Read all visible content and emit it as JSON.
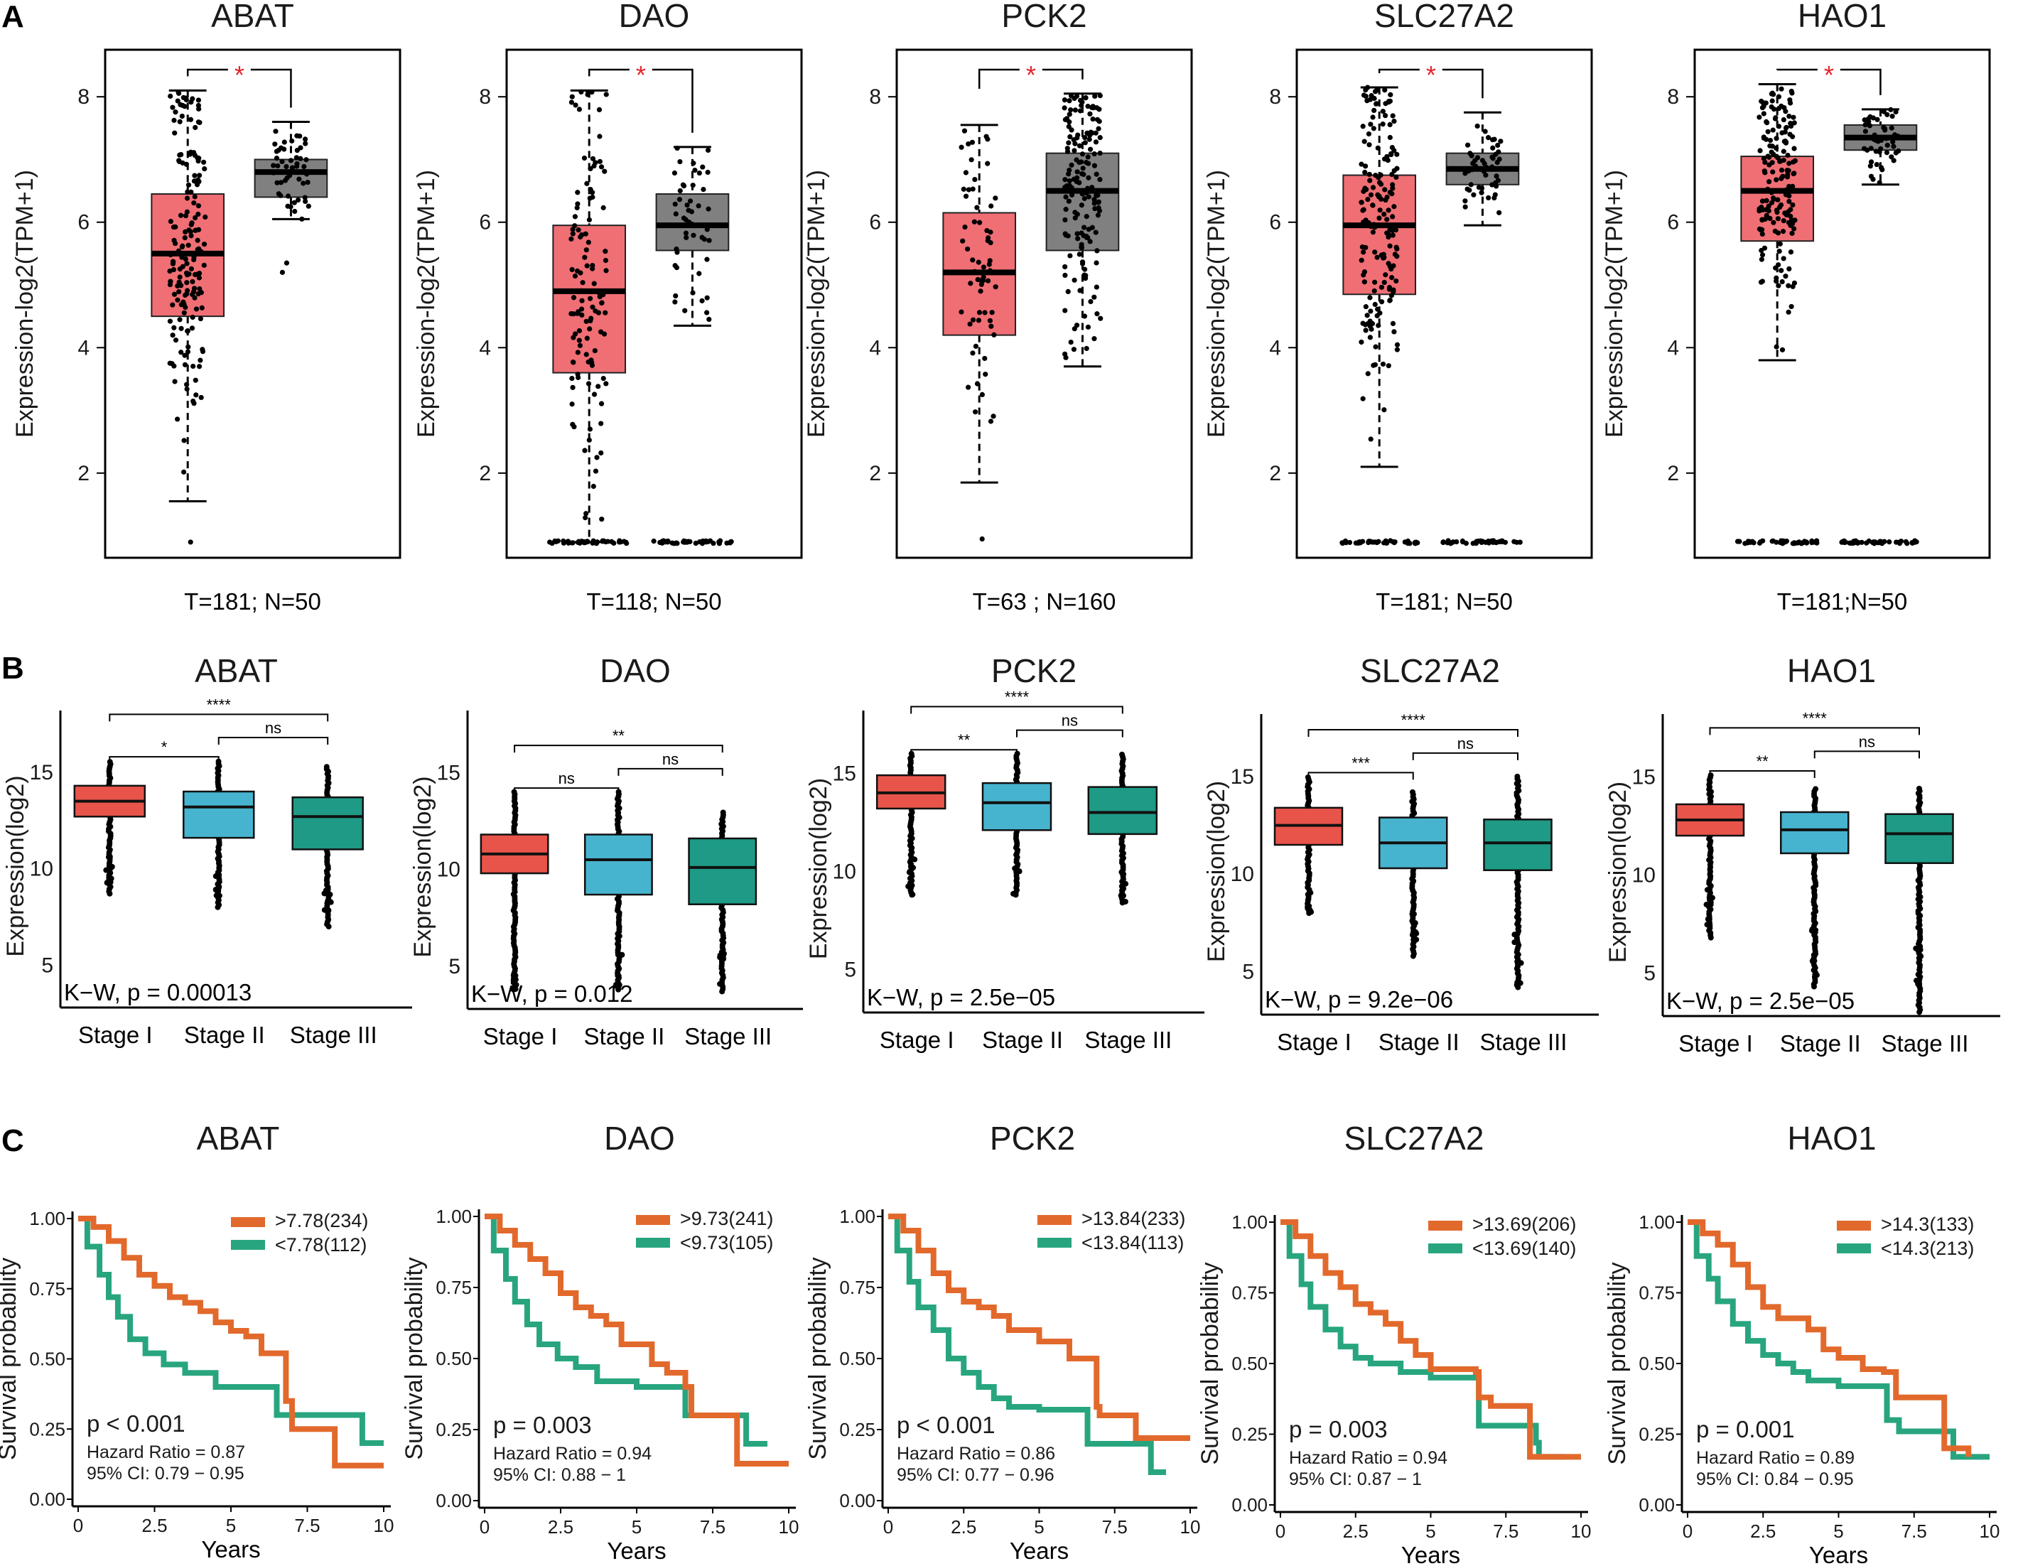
{
  "figure": {
    "panel_labels": [
      "A",
      "B",
      "C"
    ],
    "sig_marker": "*",
    "colors": {
      "tumor": "#ef6f75",
      "normal": "#808080",
      "stage1": "#e8544a",
      "stage2": "#47b4cf",
      "stage3": "#1e9a86",
      "km_high": "#e2692c",
      "km_low": "#28a57f",
      "sig_red": "#e3262c"
    }
  },
  "panelA": {
    "ylabel": "Expression-log2(TPM+1)",
    "yticks": [
      "2",
      "4",
      "6",
      "8"
    ],
    "plots": [
      {
        "gene": "ABAT",
        "counts": "T=181;   N=50",
        "tumor": {
          "n": 181,
          "q1": 4.5,
          "median": 5.5,
          "q3": 6.45,
          "whisker_low": 1.55,
          "whisker_high": 8.1,
          "zero_cluster": false,
          "low_outlier": 0.9
        },
        "normal": {
          "n": 50,
          "q1": 6.4,
          "median": 6.8,
          "q3": 7.0,
          "whisker_low": 6.05,
          "whisker_high": 7.6,
          "zero_cluster": false,
          "low_outliers": [
            5.2,
            5.35
          ]
        }
      },
      {
        "gene": "DAO",
        "counts": "T=118; N=50",
        "tumor": {
          "n": 118,
          "q1": 3.6,
          "median": 4.9,
          "q3": 5.95,
          "whisker_low": 0.9,
          "whisker_high": 8.1,
          "zero_cluster": true
        },
        "normal": {
          "n": 50,
          "q1": 5.55,
          "median": 5.95,
          "q3": 6.45,
          "whisker_low": 4.35,
          "whisker_high": 7.2,
          "zero_cluster": true
        }
      },
      {
        "gene": "PCK2",
        "counts": "T=63   ;   N=160",
        "tumor": {
          "n": 63,
          "q1": 4.2,
          "median": 5.2,
          "q3": 6.15,
          "whisker_low": 1.85,
          "whisker_high": 7.55,
          "zero_cluster": false,
          "low_outlier": 0.95
        },
        "normal": {
          "n": 160,
          "q1": 5.55,
          "median": 6.5,
          "q3": 7.1,
          "whisker_low": 3.7,
          "whisker_high": 8.05,
          "zero_cluster": false
        }
      },
      {
        "gene": "SLC27A2",
        "counts": "T=181; N=50",
        "tumor": {
          "n": 181,
          "q1": 4.85,
          "median": 5.95,
          "q3": 6.75,
          "whisker_low": 2.1,
          "whisker_high": 8.15,
          "zero_cluster": true
        },
        "normal": {
          "n": 50,
          "q1": 6.6,
          "median": 6.85,
          "q3": 7.1,
          "whisker_low": 5.95,
          "whisker_high": 7.75,
          "zero_cluster": true
        }
      },
      {
        "gene": "HAO1",
        "counts": "T=181;N=50",
        "tumor": {
          "n": 181,
          "q1": 5.7,
          "median": 6.5,
          "q3": 7.05,
          "whisker_low": 3.8,
          "whisker_high": 8.2,
          "zero_cluster": true
        },
        "normal": {
          "n": 50,
          "q1": 7.15,
          "median": 7.35,
          "q3": 7.55,
          "whisker_low": 6.6,
          "whisker_high": 7.8,
          "zero_cluster": true
        }
      }
    ]
  },
  "panelB": {
    "ylabel": "Expression(log2)",
    "yticks": [
      "5",
      "10",
      "15"
    ],
    "xlabels": [
      "Stage I",
      "Stage II",
      "Stage III"
    ],
    "plots": [
      {
        "gene": "ABAT",
        "kw": "K−W, p = 0.00013",
        "sig_12": "*",
        "sig_23": "ns",
        "sig_13": "****",
        "stages": [
          {
            "q1": 12.7,
            "median": 13.5,
            "q3": 14.3,
            "min": 8.7,
            "max": 15.6
          },
          {
            "q1": 11.6,
            "median": 13.2,
            "q3": 14.0,
            "min": 8.0,
            "max": 15.6
          },
          {
            "q1": 11.0,
            "median": 12.7,
            "q3": 13.7,
            "min": 7.0,
            "max": 15.3
          }
        ]
      },
      {
        "gene": "DAO",
        "kw": "K−W, p = 0.012",
        "sig_12": "ns",
        "sig_23": "ns",
        "sig_13": "**",
        "stages": [
          {
            "q1": 9.8,
            "median": 10.8,
            "q3": 11.8,
            "min": 3.8,
            "max": 14.0
          },
          {
            "q1": 8.7,
            "median": 10.5,
            "q3": 11.8,
            "min": 3.8,
            "max": 14.0
          },
          {
            "q1": 8.2,
            "median": 10.1,
            "q3": 11.6,
            "min": 3.7,
            "max": 13.0
          }
        ]
      },
      {
        "gene": "PCK2",
        "kw": "K−W, p = 2.5e−05",
        "sig_12": "**",
        "sig_23": "ns",
        "sig_13": "****",
        "stages": [
          {
            "q1": 13.2,
            "median": 14.0,
            "q3": 14.9,
            "min": 8.8,
            "max": 16.0
          },
          {
            "q1": 12.1,
            "median": 13.5,
            "q3": 14.5,
            "min": 8.8,
            "max": 16.0
          },
          {
            "q1": 11.9,
            "median": 13.0,
            "q3": 14.3,
            "min": 8.4,
            "max": 16.0
          }
        ]
      },
      {
        "gene": "SLC27A2",
        "kw": "K−W, p = 9.2e−06",
        "sig_12": "***",
        "sig_23": "ns",
        "sig_13": "****",
        "stages": [
          {
            "q1": 11.5,
            "median": 12.5,
            "q3": 13.4,
            "min": 8.0,
            "max": 15.0
          },
          {
            "q1": 10.3,
            "median": 11.6,
            "q3": 12.9,
            "min": 5.8,
            "max": 14.3
          },
          {
            "q1": 10.2,
            "median": 11.6,
            "q3": 12.8,
            "min": 4.2,
            "max": 15.0
          }
        ]
      },
      {
        "gene": "HAO1",
        "kw": "K−W, p = 2.5e−05",
        "sig_12": "**",
        "sig_23": "ns",
        "sig_13": "****",
        "stages": [
          {
            "q1": 12.0,
            "median": 12.8,
            "q3": 13.6,
            "min": 6.8,
            "max": 15.1
          },
          {
            "q1": 11.1,
            "median": 12.3,
            "q3": 13.2,
            "min": 4.3,
            "max": 14.4
          },
          {
            "q1": 10.6,
            "median": 12.1,
            "q3": 13.1,
            "min": 3.0,
            "max": 14.5
          }
        ]
      }
    ]
  },
  "panelC": {
    "ylabel": "Survival probability",
    "xlabel": "Years",
    "yticks": [
      "0.00",
      "0.25",
      "0.50",
      "0.75",
      "1.00"
    ],
    "xticks": [
      "0",
      "2.5",
      "5",
      "7.5",
      "10"
    ],
    "plots": [
      {
        "gene": "ABAT",
        "high_label": ">7.78(234)",
        "low_label": "<7.78(112)",
        "p": "p < 0.001",
        "hr": "Hazard Ratio = 0.87",
        "ci": "95% CI: 0.79 − 0.95",
        "high_curve": [
          [
            0,
            1.0
          ],
          [
            0.5,
            0.97
          ],
          [
            1,
            0.92
          ],
          [
            1.5,
            0.86
          ],
          [
            2,
            0.8
          ],
          [
            2.5,
            0.76
          ],
          [
            3,
            0.72
          ],
          [
            3.5,
            0.7
          ],
          [
            4,
            0.67
          ],
          [
            4.5,
            0.63
          ],
          [
            5,
            0.6
          ],
          [
            5.5,
            0.58
          ],
          [
            6,
            0.52
          ],
          [
            6.7,
            0.52
          ],
          [
            6.8,
            0.35
          ],
          [
            7,
            0.35
          ],
          [
            7,
            0.25
          ],
          [
            8.4,
            0.25
          ],
          [
            8.4,
            0.12
          ],
          [
            10,
            0.12
          ]
        ],
        "low_curve": [
          [
            0,
            1.0
          ],
          [
            0.3,
            0.9
          ],
          [
            0.7,
            0.8
          ],
          [
            1,
            0.72
          ],
          [
            1.3,
            0.65
          ],
          [
            1.7,
            0.57
          ],
          [
            2.2,
            0.52
          ],
          [
            2.8,
            0.48
          ],
          [
            3.5,
            0.45
          ],
          [
            4.5,
            0.4
          ],
          [
            6.5,
            0.4
          ],
          [
            6.5,
            0.3
          ],
          [
            9.3,
            0.3
          ],
          [
            9.3,
            0.2
          ],
          [
            10,
            0.2
          ]
        ]
      },
      {
        "gene": "DAO",
        "high_label": ">9.73(241)",
        "low_label": "<9.73(105)",
        "p": "p = 0.003",
        "hr": "Hazard Ratio = 0.94",
        "ci": "95% CI: 0.88 − 1",
        "high_curve": [
          [
            0,
            1.0
          ],
          [
            0.5,
            0.95
          ],
          [
            1,
            0.9
          ],
          [
            1.5,
            0.85
          ],
          [
            2,
            0.8
          ],
          [
            2.5,
            0.73
          ],
          [
            3,
            0.68
          ],
          [
            3.5,
            0.65
          ],
          [
            4,
            0.62
          ],
          [
            4.5,
            0.55
          ],
          [
            5.5,
            0.48
          ],
          [
            6,
            0.45
          ],
          [
            6.6,
            0.4
          ],
          [
            6.8,
            0.3
          ],
          [
            8.2,
            0.3
          ],
          [
            8.3,
            0.13
          ],
          [
            10,
            0.13
          ]
        ],
        "low_curve": [
          [
            0,
            1.0
          ],
          [
            0.3,
            0.88
          ],
          [
            0.7,
            0.78
          ],
          [
            1,
            0.7
          ],
          [
            1.4,
            0.62
          ],
          [
            1.8,
            0.55
          ],
          [
            2.4,
            0.5
          ],
          [
            3,
            0.47
          ],
          [
            3.7,
            0.42
          ],
          [
            5,
            0.4
          ],
          [
            6.5,
            0.4
          ],
          [
            6.6,
            0.3
          ],
          [
            8.6,
            0.3
          ],
          [
            8.6,
            0.2
          ],
          [
            9.3,
            0.2
          ]
        ]
      },
      {
        "gene": "PCK2",
        "high_label": ">13.84(233)",
        "low_label": "<13.84(113)",
        "p": "p < 0.001",
        "hr": "Hazard Ratio = 0.86",
        "ci": "95% CI: 0.77 − 0.96",
        "high_curve": [
          [
            0,
            1.0
          ],
          [
            0.5,
            0.95
          ],
          [
            1,
            0.88
          ],
          [
            1.5,
            0.8
          ],
          [
            2,
            0.74
          ],
          [
            2.5,
            0.7
          ],
          [
            3,
            0.68
          ],
          [
            3.5,
            0.65
          ],
          [
            4,
            0.6
          ],
          [
            5,
            0.56
          ],
          [
            6,
            0.5
          ],
          [
            6.8,
            0.5
          ],
          [
            6.9,
            0.33
          ],
          [
            7,
            0.3
          ],
          [
            8,
            0.3
          ],
          [
            8.2,
            0.22
          ],
          [
            10,
            0.22
          ]
        ],
        "low_curve": [
          [
            0,
            1.0
          ],
          [
            0.3,
            0.88
          ],
          [
            0.7,
            0.77
          ],
          [
            1,
            0.68
          ],
          [
            1.5,
            0.6
          ],
          [
            2,
            0.5
          ],
          [
            2.5,
            0.45
          ],
          [
            3,
            0.4
          ],
          [
            3.5,
            0.36
          ],
          [
            4,
            0.33
          ],
          [
            5,
            0.32
          ],
          [
            6.6,
            0.32
          ],
          [
            6.6,
            0.2
          ],
          [
            8.7,
            0.2
          ],
          [
            8.7,
            0.1
          ],
          [
            9.2,
            0.1
          ]
        ]
      },
      {
        "gene": "SLC27A2",
        "high_label": ">13.69(206)",
        "low_label": "<13.69(140)",
        "p": "p = 0.003",
        "hr": "Hazard Ratio = 0.94",
        "ci": "95% CI: 0.87 − 1",
        "high_curve": [
          [
            0,
            1.0
          ],
          [
            0.5,
            0.95
          ],
          [
            1,
            0.88
          ],
          [
            1.5,
            0.82
          ],
          [
            2,
            0.77
          ],
          [
            2.5,
            0.71
          ],
          [
            3,
            0.68
          ],
          [
            3.5,
            0.64
          ],
          [
            4,
            0.58
          ],
          [
            4.5,
            0.53
          ],
          [
            5,
            0.48
          ],
          [
            6.5,
            0.47
          ],
          [
            6.6,
            0.38
          ],
          [
            7,
            0.35
          ],
          [
            8.2,
            0.35
          ],
          [
            8.3,
            0.17
          ],
          [
            10,
            0.17
          ]
        ],
        "low_curve": [
          [
            0,
            1.0
          ],
          [
            0.3,
            0.88
          ],
          [
            0.7,
            0.78
          ],
          [
            1,
            0.7
          ],
          [
            1.5,
            0.62
          ],
          [
            2,
            0.56
          ],
          [
            2.5,
            0.52
          ],
          [
            3,
            0.5
          ],
          [
            4,
            0.47
          ],
          [
            5,
            0.45
          ],
          [
            6.5,
            0.45
          ],
          [
            6.6,
            0.28
          ],
          [
            7.5,
            0.28
          ],
          [
            8.5,
            0.22
          ],
          [
            8.6,
            0.17
          ],
          [
            9.5,
            0.17
          ]
        ]
      },
      {
        "gene": "HAO1",
        "high_label": ">14.3(133)",
        "low_label": "<14.3(213)",
        "p": "p = 0.001",
        "hr": "Hazard Ratio = 0.89",
        "ci": "95% CI: 0.84 − 0.95",
        "high_curve": [
          [
            0,
            1.0
          ],
          [
            0.5,
            0.96
          ],
          [
            1,
            0.92
          ],
          [
            1.5,
            0.85
          ],
          [
            2,
            0.77
          ],
          [
            2.5,
            0.7
          ],
          [
            3,
            0.66
          ],
          [
            4,
            0.62
          ],
          [
            4.5,
            0.55
          ],
          [
            5,
            0.52
          ],
          [
            5.8,
            0.48
          ],
          [
            6.5,
            0.47
          ],
          [
            6.9,
            0.38
          ],
          [
            8.4,
            0.38
          ],
          [
            8.5,
            0.2
          ],
          [
            9.3,
            0.17
          ]
        ],
        "low_curve": [
          [
            0,
            1.0
          ],
          [
            0.3,
            0.88
          ],
          [
            0.7,
            0.8
          ],
          [
            1,
            0.72
          ],
          [
            1.5,
            0.64
          ],
          [
            2,
            0.58
          ],
          [
            2.5,
            0.53
          ],
          [
            3,
            0.5
          ],
          [
            3.5,
            0.47
          ],
          [
            4,
            0.44
          ],
          [
            5,
            0.42
          ],
          [
            6.4,
            0.42
          ],
          [
            6.6,
            0.3
          ],
          [
            7,
            0.26
          ],
          [
            8.7,
            0.26
          ],
          [
            8.8,
            0.17
          ],
          [
            10,
            0.17
          ]
        ]
      }
    ]
  }
}
